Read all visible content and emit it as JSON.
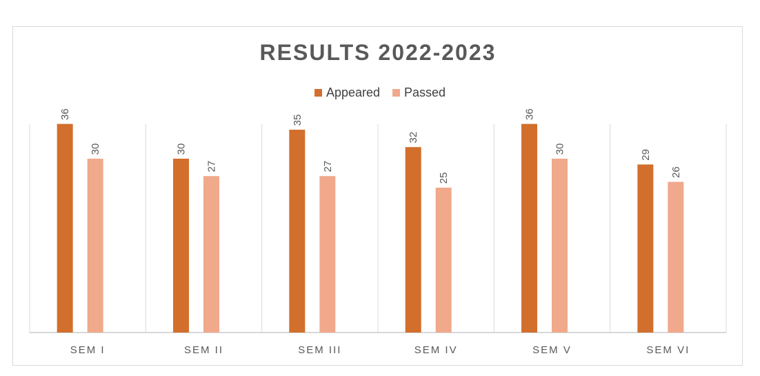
{
  "chart_data": {
    "type": "bar",
    "title": "RESULTS 2022-2023",
    "xlabel": "",
    "ylabel": "",
    "categories": [
      "SEM I",
      "SEM II",
      "SEM III",
      "SEM IV",
      "SEM V",
      "SEM VI"
    ],
    "series": [
      {
        "name": "Appeared",
        "values": [
          36,
          30,
          35,
          32,
          36,
          29
        ],
        "color": "#d26f2c"
      },
      {
        "name": "Passed",
        "values": [
          30,
          27,
          27,
          25,
          30,
          26
        ],
        "color": "#f0a98b"
      }
    ],
    "ylim": [
      0,
      40
    ],
    "legend": "top-center",
    "grid": false,
    "data_labels": true
  }
}
